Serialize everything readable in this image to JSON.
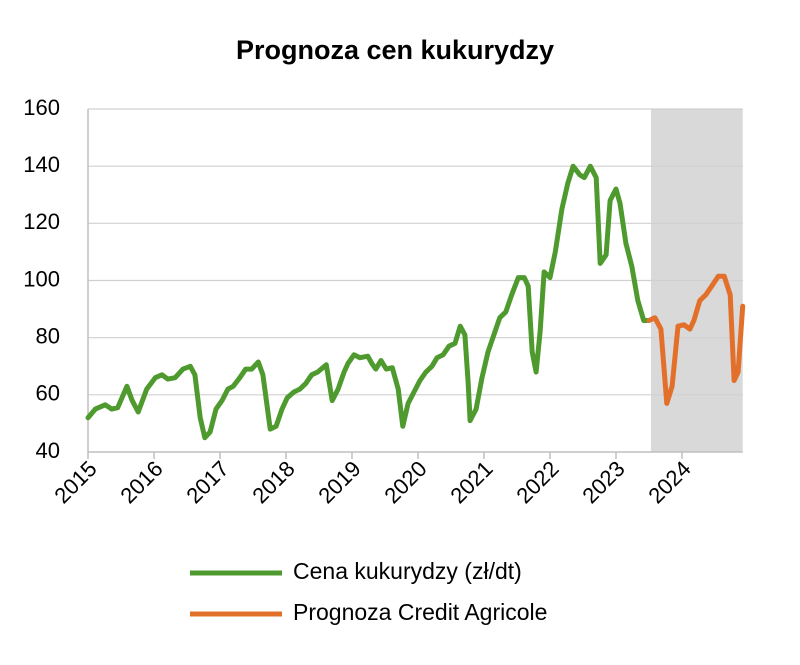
{
  "chart_data": {
    "type": "line",
    "title": "Prognoza cen kukurydzy",
    "xlim": [
      2015,
      2025
    ],
    "xticks": [
      2015,
      2016,
      2017,
      2018,
      2019,
      2020,
      2021,
      2022,
      2023,
      2024
    ],
    "ylim": [
      40,
      160
    ],
    "yticks": [
      40,
      60,
      80,
      100,
      120,
      140,
      160
    ],
    "grid": true,
    "legend": "bottom",
    "shaded_x": [
      2023.53,
      2024.92
    ],
    "shaded_color": "#d9d9d9",
    "series": [
      {
        "name": "Cena kukurydzy (zł/dt)",
        "color": "#4f9a2e",
        "x": [
          2015.0,
          2015.11,
          2015.26,
          2015.36,
          2015.45,
          2015.59,
          2015.67,
          2015.76,
          2015.89,
          2016.02,
          2016.12,
          2016.21,
          2016.32,
          2016.44,
          2016.55,
          2016.62,
          2016.7,
          2016.77,
          2016.85,
          2016.94,
          2017.03,
          2017.12,
          2017.2,
          2017.3,
          2017.39,
          2017.48,
          2017.58,
          2017.65,
          2017.76,
          2017.85,
          2017.94,
          2018.02,
          2018.12,
          2018.21,
          2018.3,
          2018.39,
          2018.48,
          2018.61,
          2018.7,
          2018.79,
          2018.88,
          2018.94,
          2019.03,
          2019.12,
          2019.24,
          2019.3,
          2019.36,
          2019.44,
          2019.52,
          2019.61,
          2019.7,
          2019.77,
          2019.85,
          2019.94,
          2020.03,
          2020.12,
          2020.21,
          2020.29,
          2020.38,
          2020.47,
          2020.56,
          2020.64,
          2020.71,
          2020.76,
          2020.79,
          2020.88,
          2020.97,
          2021.06,
          2021.15,
          2021.24,
          2021.33,
          2021.42,
          2021.52,
          2021.61,
          2021.67,
          2021.73,
          2021.79,
          2021.85,
          2021.91,
          2022.0,
          2022.08,
          2022.18,
          2022.27,
          2022.35,
          2022.45,
          2022.52,
          2022.61,
          2022.7,
          2022.76,
          2022.85,
          2022.91,
          2023.0,
          2023.06,
          2023.15,
          2023.24,
          2023.33,
          2023.42,
          2023.47
        ],
        "values": [
          52,
          55,
          56.5,
          55,
          55.5,
          63,
          58,
          54,
          62,
          66,
          67,
          65.5,
          66,
          69,
          70,
          67,
          52,
          45,
          47,
          55,
          58,
          62,
          63,
          66,
          69,
          69,
          71.5,
          67,
          48,
          49,
          55,
          59,
          61,
          62,
          64,
          67,
          68,
          70.5,
          58,
          62,
          68,
          71,
          74,
          73,
          73.5,
          71,
          69,
          72,
          69,
          69.5,
          62,
          49,
          57,
          61,
          65,
          68,
          70,
          73,
          74,
          77,
          78,
          84,
          81,
          64,
          51,
          55,
          66,
          75,
          81,
          87,
          89,
          95,
          101,
          101,
          98,
          75,
          68,
          82,
          103,
          101,
          110,
          125,
          134,
          140,
          137,
          136,
          140,
          136,
          106,
          109,
          128,
          132,
          127,
          113,
          105,
          93,
          86,
          86
        ]
      },
      {
        "name": "Prognoza Credit Agricole",
        "color": "#e2702a",
        "x": [
          2023.5,
          2023.59,
          2023.68,
          2023.77,
          2023.85,
          2023.94,
          2024.03,
          2024.12,
          2024.18,
          2024.27,
          2024.36,
          2024.45,
          2024.55,
          2024.64,
          2024.73,
          2024.79,
          2024.85,
          2024.92
        ],
        "values": [
          86,
          87,
          83,
          57,
          63,
          84,
          84.5,
          83,
          86,
          93,
          95,
          98,
          101.5,
          101.5,
          95,
          65,
          68,
          91
        ]
      }
    ]
  }
}
